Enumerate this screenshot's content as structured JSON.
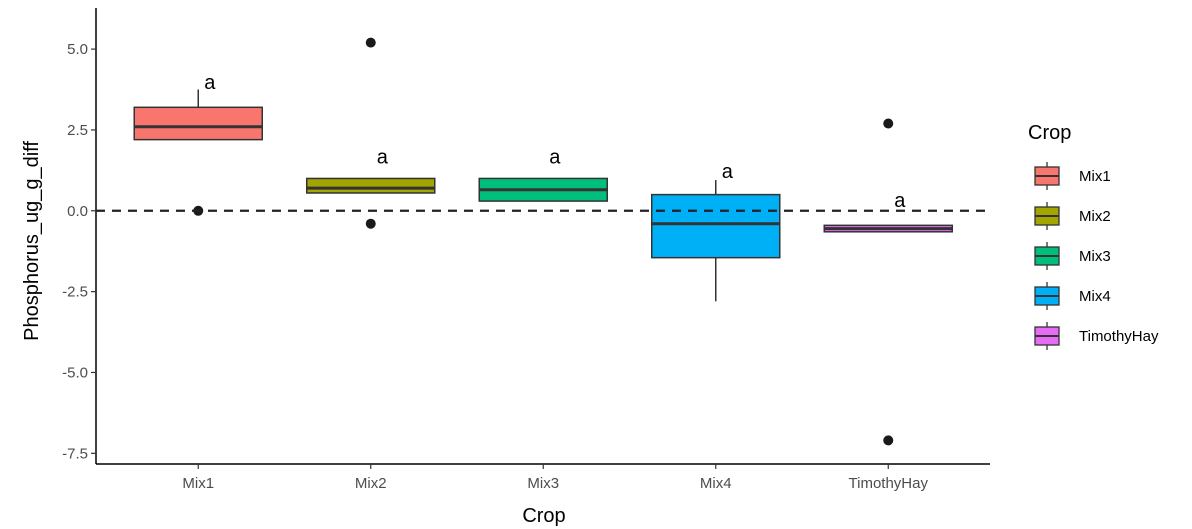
{
  "chart_data": {
    "type": "box",
    "xlabel": "Crop",
    "ylabel": "Phosphorus_ug_g_diff",
    "ylim": [
      -7.8,
      5.9
    ],
    "yticks": [
      5.0,
      2.5,
      0.0,
      -2.5,
      -5.0,
      -7.5
    ],
    "ytick_labels": [
      "5.0",
      "2.5",
      "0.0",
      "-2.5",
      "-5.0",
      "-7.5"
    ],
    "categories": [
      "Mix1",
      "Mix2",
      "Mix3",
      "Mix4",
      "TimothyHay"
    ],
    "reference_line": 0.0,
    "grid": false,
    "legend": {
      "title": "Crop",
      "position": "right"
    },
    "boxes": [
      {
        "name": "Mix1",
        "color": "#F8766D",
        "q1": 2.2,
        "median": 2.6,
        "q3": 3.2,
        "whisker_low": 2.2,
        "whisker_high": 3.75,
        "outliers": [
          0.0
        ],
        "label": "a",
        "label_y": 3.7
      },
      {
        "name": "Mix2",
        "color": "#A3A500",
        "q1": 0.55,
        "median": 0.7,
        "q3": 1.0,
        "whisker_low": 0.55,
        "whisker_high": 1.0,
        "outliers": [
          5.2,
          -0.4
        ],
        "label": "a",
        "label_y": 1.4
      },
      {
        "name": "Mix3",
        "color": "#00BF7D",
        "q1": 0.3,
        "median": 0.65,
        "q3": 1.0,
        "whisker_low": 0.3,
        "whisker_high": 1.0,
        "outliers": [],
        "label": "a",
        "label_y": 1.4
      },
      {
        "name": "Mix4",
        "color": "#00B0F6",
        "q1": -1.45,
        "median": -0.4,
        "q3": 0.5,
        "whisker_low": -2.8,
        "whisker_high": 0.95,
        "outliers": [],
        "label": "a",
        "label_y": 0.95
      },
      {
        "name": "TimothyHay",
        "color": "#E76BF3",
        "q1": -0.65,
        "median": -0.55,
        "q3": -0.45,
        "whisker_low": -0.65,
        "whisker_high": -0.45,
        "outliers": [
          2.7,
          -7.1
        ],
        "label": "a",
        "label_y": 0.05
      }
    ]
  }
}
